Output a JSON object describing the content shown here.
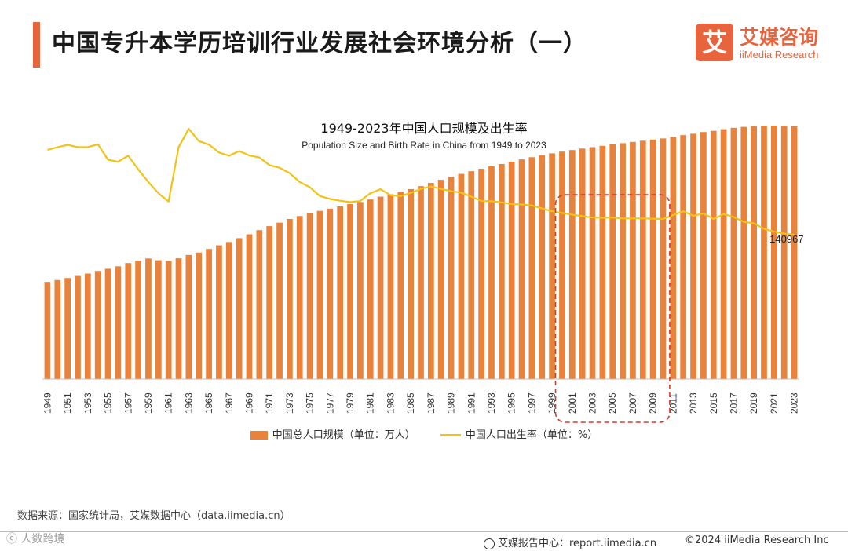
{
  "header": {
    "title": "中国专升本学历培训行业发展社会环境分析（一）",
    "logo_mark": "艾",
    "logo_cn": "艾媒咨询",
    "logo_en": "iiMedia Research"
  },
  "chart_data": {
    "type": "bar+line",
    "title": "1949-2023年中国人口规模及出生率",
    "subtitle": "Population Size and Birth Rate in China from 1949 to 2023",
    "categories": [
      1949,
      1950,
      1951,
      1952,
      1953,
      1954,
      1955,
      1956,
      1957,
      1958,
      1959,
      1960,
      1961,
      1962,
      1963,
      1964,
      1965,
      1966,
      1967,
      1968,
      1969,
      1970,
      1971,
      1972,
      1973,
      1974,
      1975,
      1976,
      1977,
      1978,
      1979,
      1980,
      1981,
      1982,
      1983,
      1984,
      1985,
      1986,
      1987,
      1988,
      1989,
      1990,
      1991,
      1992,
      1993,
      1994,
      1995,
      1996,
      1997,
      1998,
      1999,
      2000,
      2001,
      2002,
      2003,
      2004,
      2005,
      2006,
      2007,
      2008,
      2009,
      2010,
      2011,
      2012,
      2013,
      2014,
      2015,
      2016,
      2017,
      2018,
      2019,
      2020,
      2021,
      2022,
      2023
    ],
    "tick_labels": [
      "1949",
      "1951",
      "1953",
      "1955",
      "1957",
      "1959",
      "1961",
      "1963",
      "1965",
      "1967",
      "1969",
      "1971",
      "1973",
      "1975",
      "1977",
      "1979",
      "1981",
      "1983",
      "1985",
      "1987",
      "1989",
      "1991",
      "1993",
      "1995",
      "1997",
      "1999",
      "2001",
      "2003",
      "2005",
      "2007",
      "2009",
      "2011",
      "2013",
      "2015",
      "2017",
      "2019",
      "2021",
      "2023"
    ],
    "series": [
      {
        "name": "中国总人口规模（单位：万人）",
        "kind": "bar",
        "color": "#e9823a",
        "values": [
          54167,
          55196,
          56300,
          57482,
          58796,
          60266,
          61465,
          62828,
          64653,
          65994,
          67207,
          66207,
          65859,
          67296,
          69172,
          70499,
          72538,
          74542,
          76368,
          78534,
          80671,
          82992,
          85229,
          87177,
          89211,
          90859,
          92420,
          93717,
          94974,
          96259,
          97542,
          98705,
          100072,
          101654,
          103008,
          104357,
          105851,
          107507,
          109300,
          111026,
          112704,
          114333,
          115823,
          117171,
          118517,
          119850,
          121121,
          122389,
          123626,
          124761,
          125786,
          126743,
          127627,
          128453,
          129227,
          129988,
          130756,
          131448,
          132129,
          132802,
          133450,
          134091,
          134916,
          135922,
          136726,
          137646,
          138326,
          139232,
          140011,
          140541,
          141008,
          141212,
          141260,
          141175,
          140967
        ]
      },
      {
        "name": "中国人口出生率（单位：%）",
        "kind": "line",
        "color": "#f2c316",
        "values": [
          36.0,
          37.0,
          37.8,
          37.0,
          37.0,
          38.0,
          32.6,
          31.9,
          34.0,
          29.2,
          24.8,
          20.9,
          18.0,
          37.0,
          43.4,
          39.1,
          37.9,
          35.1,
          34.0,
          35.6,
          34.1,
          33.4,
          30.7,
          29.8,
          27.9,
          24.8,
          23.0,
          19.9,
          18.9,
          18.3,
          17.8,
          18.2,
          20.9,
          22.3,
          20.2,
          19.9,
          21.0,
          22.4,
          23.3,
          22.4,
          21.6,
          21.1,
          19.7,
          18.2,
          18.1,
          17.7,
          17.1,
          17.0,
          16.6,
          15.6,
          14.6,
          14.0,
          13.4,
          12.9,
          12.4,
          12.3,
          12.4,
          12.1,
          12.1,
          12.1,
          12.0,
          11.9,
          13.3,
          14.6,
          13.0,
          13.8,
          11.9,
          13.6,
          12.6,
          10.9,
          10.4,
          8.5,
          7.5,
          6.8,
          6.4
        ]
      }
    ],
    "data_label": "140967",
    "highlight_range": [
      2000,
      2010
    ],
    "y_left_range": [
      0,
      150000
    ],
    "y_right_range": [
      -44,
      50
    ]
  },
  "legend": {
    "bar_label": "中国总人口规模（单位：万人）",
    "line_label": "中国人口出生率（单位：%）"
  },
  "source": "数据来源：国家统计局，艾媒数据中心（data.iimedia.cn）",
  "footer": {
    "left": "ⓒ 人数跨境",
    "center": "艾媒报告中心：report.iimedia.cn",
    "right": "©2024  iiMedia Research  Inc"
  }
}
